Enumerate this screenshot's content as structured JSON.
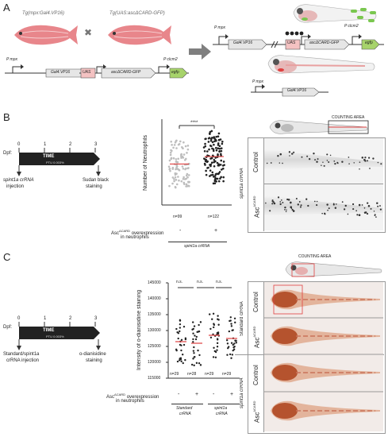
{
  "panels": {
    "a": "A",
    "b": "B",
    "c": "C"
  },
  "panelA": {
    "fish_left_label": "Tg(mpx:Gal4.VP16)",
    "fish_right_label": "Tg(UAS:ascΔCARD-GFP)",
    "cross_symbol": "✖",
    "promoter_mpx": "P mpx",
    "gene_gal4": "Gal4.VP16",
    "uas": "UAS",
    "gene_asc": "ascΔCARD-GFP",
    "promoter_clcm2": "P clcm2",
    "gene_egfp": "egfp"
  },
  "panelB": {
    "dpf_label": "Dpf:",
    "ticks": [
      "0",
      "1",
      "2",
      "3"
    ],
    "time_label": "TIME",
    "ptu_label": "PTU 0.003%",
    "injection_label_1": "spint1a crRNA",
    "injection_label_2": "injection",
    "staining_label_1": "Sudan black",
    "staining_label_2": "staining",
    "ylabel": "Number of Neutrophils",
    "significance": "****",
    "n_values": [
      "n=99",
      "n=122"
    ],
    "overexpression_label": "Asc",
    "overexpression_sup": "ΔCARD",
    "overexpression_rest": " overexpression",
    "in_neutrophils": "in neutrophils",
    "signs": [
      "-",
      "+"
    ],
    "xgroup": "spint1a crRNA",
    "counting_area": "COUNTING AREA",
    "row_control": "Control",
    "row_asc": "Asc",
    "row_asc_sup": "ΔCARD",
    "side_label": "spint1a crRNA"
  },
  "panelC": {
    "dpf_label": "Dpf:",
    "ticks": [
      "0",
      "1",
      "2",
      "3"
    ],
    "time_label": "TIME",
    "ptu_label": "PTU 0.003%",
    "injection_label_1": "Standard/spint1a",
    "injection_label_2": "crRNA injection",
    "staining_label_1": "o-dianisidine",
    "staining_label_2": "staining",
    "ylabel": "Intensity of o-dianisidine staining",
    "yticks": [
      "145000",
      "140000",
      "135000",
      "130000",
      "125000",
      "120000",
      "115000"
    ],
    "ns": [
      "n.s.",
      "n.s.",
      "n.s."
    ],
    "n_values": [
      "n=29",
      "n=28",
      "n=29",
      "n=29"
    ],
    "overexpression_label": "Asc",
    "overexpression_sup": "ΔCARD",
    "overexpression_rest": " overexpression",
    "in_neutrophils": "in neutrophils",
    "signs": [
      "-",
      "+",
      "-",
      "+"
    ],
    "xgroup_1a": "Standard",
    "xgroup_1b": "crRNA",
    "xgroup_2a": "spint1a",
    "xgroup_2b": "crRNA",
    "counting_area": "COUNTING AREA",
    "row_control": "Control",
    "row_asc": "Asc",
    "row_asc_sup": "ΔCARD",
    "side_label_top": "Standard crRNA",
    "side_label_bottom": "spint1a crRNA"
  },
  "chart_data": [
    {
      "type": "scatter",
      "title": "",
      "xlabel": "",
      "ylabel": "Number of Neutrophils",
      "categories": [
        "-",
        "+"
      ],
      "series": [
        {
          "n": 99,
          "mean": 165
        },
        {
          "n": 122,
          "mean": 195
        }
      ],
      "annotations": [
        "****"
      ]
    },
    {
      "type": "scatter",
      "title": "",
      "xlabel": "",
      "ylabel": "Intensity of o-dianisidine staining",
      "ylim": [
        115000,
        145000
      ],
      "categories": [
        "Standard crRNA -",
        "Standard crRNA +",
        "spint1a crRNA -",
        "spint1a crRNA +"
      ],
      "series": [
        {
          "n": 29,
          "mean": 126500
        },
        {
          "n": 28,
          "mean": 126000
        },
        {
          "n": 29,
          "mean": 128500
        },
        {
          "n": 29,
          "mean": 127500
        }
      ],
      "annotations": [
        "n.s.",
        "n.s.",
        "n.s."
      ]
    }
  ],
  "colors": {
    "fish_pink": "#e8868b",
    "fish_body": "#d9a0a4",
    "gene_box": "#e6e6e6",
    "uas_box": "#f4c2c2",
    "egfp_box": "#a7d36b",
    "mean_line": "#e04040",
    "arrow_grey": "#7f7f7f"
  }
}
